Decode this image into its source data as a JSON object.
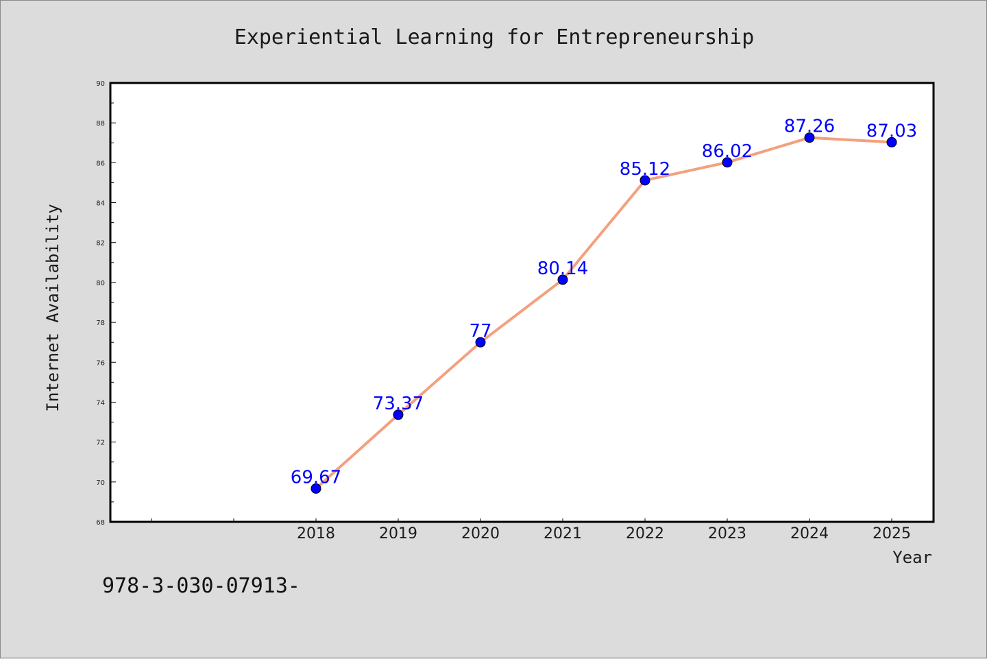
{
  "chart_data": {
    "type": "line",
    "title": "Experiential Learning for Entrepreneurship",
    "xlabel": "Year",
    "ylabel": "Internet Availability",
    "categories": [
      "2018",
      "2019",
      "2020",
      "2021",
      "2022",
      "2023",
      "2024",
      "2025"
    ],
    "series": [
      {
        "values": [
          69.67,
          73.37,
          77,
          80.14,
          85.12,
          86.02,
          87.26,
          87.03
        ],
        "data_labels": [
          "69.67",
          "73.37",
          "77",
          "80.14",
          "85.12",
          "86.02",
          "87.26",
          "87.03"
        ],
        "line_color": "#f4a07e",
        "marker_color": "#0000ff"
      }
    ],
    "ylim": [
      68,
      90
    ],
    "yticks": [
      "68",
      "70",
      "72",
      "74",
      "76",
      "78",
      "80",
      "82",
      "84",
      "86",
      "88",
      "90"
    ],
    "grid": false,
    "legend": "none"
  },
  "annotation": "978-3-030-07913-",
  "colors": {
    "background": "#dcdcdc",
    "plot_background": "#ffffff",
    "frame": "#000000",
    "line": "#f4a07e",
    "marker": "#0000ff",
    "data_label": "#0000ff"
  }
}
